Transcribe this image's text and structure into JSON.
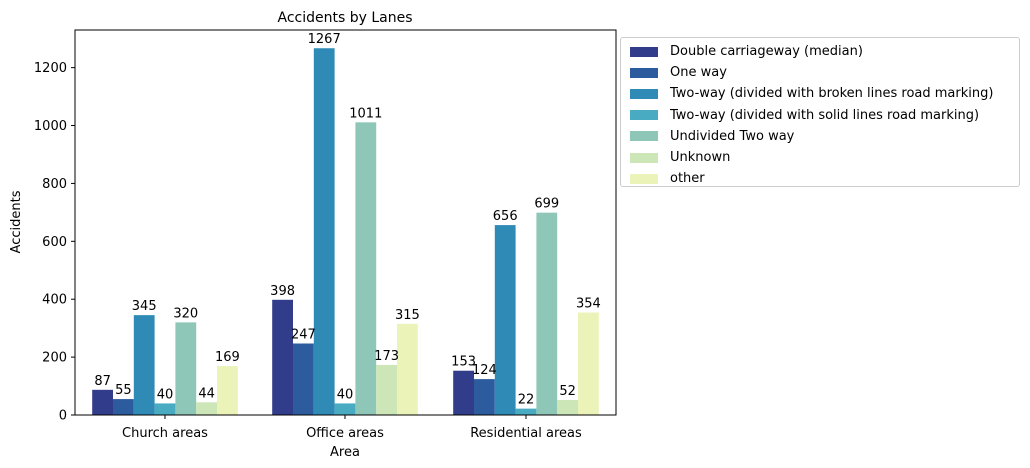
{
  "chart_data": {
    "type": "bar",
    "title": "Accidents by Lanes",
    "xlabel": "Area",
    "ylabel": "Accidents",
    "categories": [
      "Church areas",
      "Office areas",
      "Residential areas"
    ],
    "ylim": [
      0,
      1330
    ],
    "yticks": [
      0,
      200,
      400,
      600,
      800,
      1000,
      1200
    ],
    "grid": false,
    "legend_position": "outside-right",
    "series": [
      {
        "name": "Double carriageway (median)",
        "color": "#313c8b",
        "values": [
          87,
          398,
          153
        ]
      },
      {
        "name": "One way",
        "color": "#2c5c9e",
        "values": [
          55,
          247,
          124
        ]
      },
      {
        "name": "Two-way (divided with broken lines road marking)",
        "color": "#2f8ab6",
        "values": [
          345,
          1267,
          656
        ]
      },
      {
        "name": "Two-way (divided with solid lines road marking)",
        "color": "#48abc2",
        "values": [
          40,
          40,
          22
        ]
      },
      {
        "name": "Undivided Two way",
        "color": "#8ec7b7",
        "values": [
          320,
          1011,
          699
        ]
      },
      {
        "name": "Unknown",
        "color": "#cde6b7",
        "values": [
          44,
          173,
          52
        ]
      },
      {
        "name": "other",
        "color": "#ebf3b8",
        "values": [
          169,
          315,
          354
        ]
      }
    ]
  }
}
